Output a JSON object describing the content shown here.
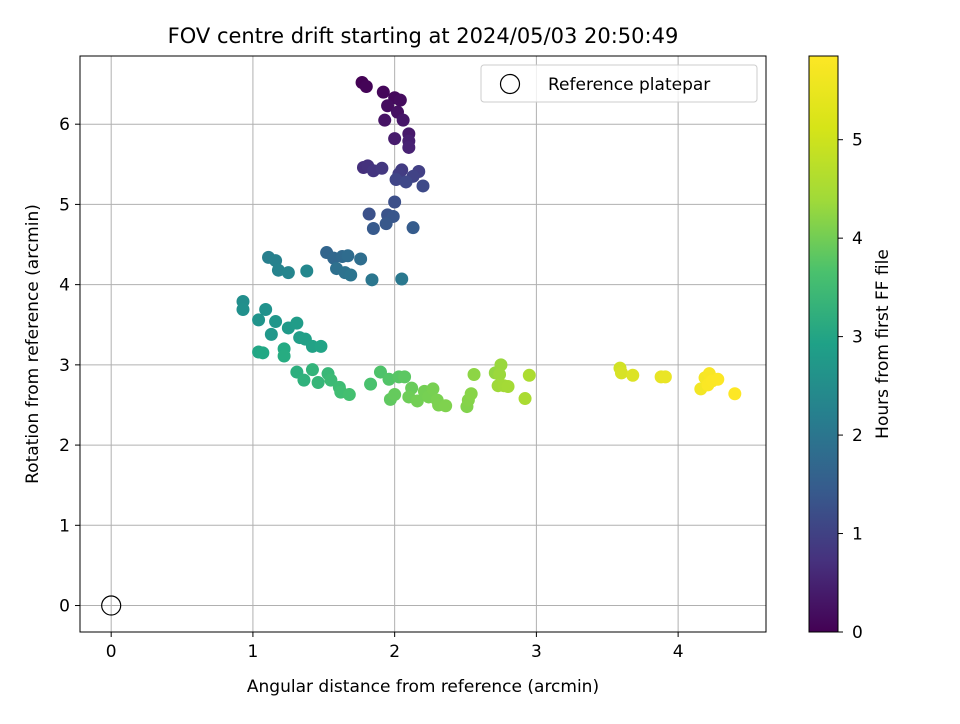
{
  "chart_data": {
    "type": "scatter",
    "title": "FOV centre drift starting at 2024/05/03 20:50:49",
    "xlabel": "Angular distance from reference (arcmin)",
    "ylabel": "Rotation from reference (arcmin)",
    "xlim": [
      -0.22,
      4.62
    ],
    "ylim": [
      -0.33,
      6.85
    ],
    "xticks": [
      0,
      1,
      2,
      3,
      4
    ],
    "xtick_labels": [
      "0",
      "1",
      "2",
      "3",
      "4"
    ],
    "yticks": [
      0,
      1,
      2,
      3,
      4,
      5,
      6
    ],
    "ytick_labels": [
      "0",
      "1",
      "2",
      "3",
      "4",
      "5",
      "6"
    ],
    "grid": true,
    "legend": {
      "position": "upper right",
      "entries": [
        "Reference platepar"
      ]
    },
    "colorbar": {
      "label": "Hours from first FF file",
      "colormap": "viridis",
      "range": [
        0,
        5.85
      ],
      "ticks": [
        0,
        1,
        2,
        3,
        4,
        5
      ],
      "tick_labels": [
        "0",
        "1",
        "2",
        "3",
        "4",
        "5"
      ]
    },
    "reference_point": {
      "name": "Reference platepar",
      "x": 0,
      "y": 0
    },
    "series": [
      {
        "columns": [
          "x",
          "y",
          "hours"
        ],
        "points": [
          [
            1.77,
            6.52,
            0.02
          ],
          [
            1.8,
            6.47,
            0.05
          ],
          [
            1.92,
            6.4,
            0.1
          ],
          [
            2.0,
            6.33,
            0.15
          ],
          [
            2.04,
            6.3,
            0.18
          ],
          [
            1.95,
            6.23,
            0.2
          ],
          [
            2.02,
            6.15,
            0.25
          ],
          [
            1.93,
            6.05,
            0.3
          ],
          [
            2.06,
            6.05,
            0.35
          ],
          [
            2.1,
            5.88,
            0.4
          ],
          [
            2.0,
            5.82,
            0.45
          ],
          [
            2.1,
            5.79,
            0.5
          ],
          [
            2.1,
            5.71,
            0.55
          ],
          [
            1.78,
            5.46,
            0.8
          ],
          [
            1.81,
            5.48,
            0.85
          ],
          [
            1.85,
            5.42,
            0.9
          ],
          [
            1.91,
            5.45,
            0.95
          ],
          [
            2.05,
            5.43,
            1.0
          ],
          [
            2.03,
            5.38,
            1.05
          ],
          [
            2.17,
            5.41,
            1.1
          ],
          [
            2.13,
            5.35,
            1.15
          ],
          [
            2.01,
            5.31,
            1.2
          ],
          [
            2.08,
            5.28,
            1.25
          ],
          [
            2.2,
            5.23,
            1.3
          ],
          [
            2.0,
            5.03,
            1.4
          ],
          [
            1.82,
            4.88,
            1.45
          ],
          [
            1.95,
            4.87,
            1.5
          ],
          [
            1.99,
            4.85,
            1.55
          ],
          [
            1.94,
            4.76,
            1.6
          ],
          [
            1.85,
            4.7,
            1.65
          ],
          [
            2.13,
            4.71,
            1.7
          ],
          [
            1.52,
            4.4,
            1.9
          ],
          [
            1.57,
            4.33,
            1.95
          ],
          [
            1.63,
            4.35,
            2.0
          ],
          [
            1.67,
            4.36,
            2.05
          ],
          [
            1.76,
            4.32,
            2.1
          ],
          [
            1.59,
            4.2,
            2.15
          ],
          [
            1.65,
            4.15,
            2.2
          ],
          [
            1.69,
            4.12,
            2.25
          ],
          [
            1.84,
            4.06,
            2.3
          ],
          [
            2.05,
            4.07,
            2.35
          ],
          [
            1.11,
            4.34,
            2.5
          ],
          [
            1.16,
            4.3,
            2.55
          ],
          [
            1.18,
            4.18,
            2.6
          ],
          [
            1.25,
            4.15,
            2.65
          ],
          [
            1.38,
            4.17,
            2.7
          ],
          [
            0.93,
            3.79,
            2.85
          ],
          [
            0.93,
            3.69,
            2.9
          ],
          [
            1.09,
            3.69,
            2.95
          ],
          [
            1.04,
            3.56,
            3.0
          ],
          [
            1.16,
            3.54,
            3.05
          ],
          [
            1.13,
            3.38,
            3.1
          ],
          [
            1.25,
            3.46,
            3.15
          ],
          [
            1.31,
            3.52,
            3.2
          ],
          [
            1.33,
            3.34,
            3.25
          ],
          [
            1.37,
            3.32,
            3.3
          ],
          [
            1.42,
            3.23,
            3.35
          ],
          [
            1.48,
            3.23,
            3.4
          ],
          [
            1.04,
            3.16,
            3.45
          ],
          [
            1.07,
            3.15,
            3.5
          ],
          [
            1.22,
            3.2,
            3.55
          ],
          [
            1.22,
            3.11,
            3.6
          ],
          [
            1.31,
            2.91,
            3.7
          ],
          [
            1.36,
            2.81,
            3.75
          ],
          [
            1.42,
            2.94,
            3.8
          ],
          [
            1.46,
            2.78,
            3.85
          ],
          [
            1.53,
            2.89,
            3.9
          ],
          [
            1.55,
            2.81,
            3.95
          ],
          [
            1.61,
            2.72,
            4.0
          ],
          [
            1.62,
            2.66,
            4.05
          ],
          [
            1.68,
            2.63,
            4.1
          ],
          [
            1.83,
            2.76,
            4.15
          ],
          [
            1.9,
            2.91,
            4.2
          ],
          [
            1.96,
            2.82,
            4.25
          ],
          [
            2.03,
            2.85,
            4.3
          ],
          [
            2.07,
            2.85,
            4.35
          ],
          [
            1.97,
            2.57,
            4.4
          ],
          [
            2.0,
            2.63,
            4.45
          ],
          [
            2.12,
            2.71,
            4.5
          ],
          [
            2.1,
            2.6,
            4.55
          ],
          [
            2.16,
            2.55,
            4.6
          ],
          [
            2.21,
            2.67,
            4.62
          ],
          [
            2.24,
            2.6,
            4.64
          ],
          [
            2.27,
            2.7,
            4.66
          ],
          [
            2.3,
            2.56,
            4.68
          ],
          [
            2.31,
            2.5,
            4.7
          ],
          [
            2.36,
            2.49,
            4.72
          ],
          [
            2.51,
            2.48,
            4.75
          ],
          [
            2.52,
            2.56,
            4.78
          ],
          [
            2.54,
            2.64,
            4.8
          ],
          [
            2.56,
            2.88,
            4.85
          ],
          [
            2.71,
            2.9,
            4.9
          ],
          [
            2.75,
            3.0,
            4.95
          ],
          [
            2.74,
            2.88,
            4.97
          ],
          [
            2.73,
            2.74,
            5.0
          ],
          [
            2.77,
            2.74,
            5.03
          ],
          [
            2.8,
            2.73,
            5.05
          ],
          [
            2.92,
            2.58,
            5.1
          ],
          [
            2.95,
            2.87,
            5.12
          ],
          [
            3.59,
            2.96,
            5.45
          ],
          [
            3.6,
            2.9,
            5.5
          ],
          [
            3.68,
            2.87,
            5.55
          ],
          [
            3.88,
            2.85,
            5.65
          ],
          [
            3.91,
            2.85,
            5.68
          ],
          [
            4.16,
            2.7,
            5.75
          ],
          [
            4.19,
            2.84,
            5.78
          ],
          [
            4.22,
            2.89,
            5.8
          ],
          [
            4.21,
            2.75,
            5.82
          ],
          [
            4.24,
            2.8,
            5.83
          ],
          [
            4.28,
            2.82,
            5.84
          ],
          [
            4.4,
            2.64,
            5.85
          ]
        ]
      }
    ]
  }
}
